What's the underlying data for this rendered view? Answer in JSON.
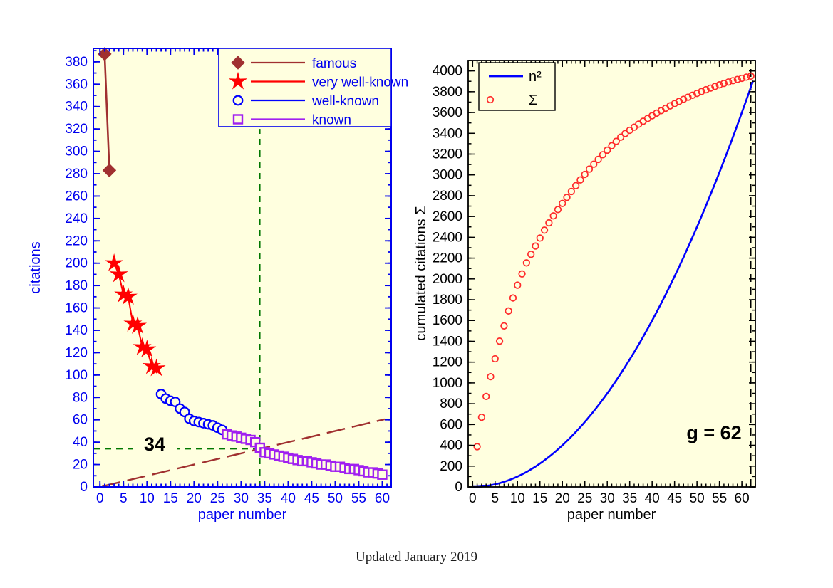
{
  "page": {
    "background": "#ffffff",
    "caption": "Updated January 2019"
  },
  "colors": {
    "plot_background": "#FFFFDF",
    "left_axis": "#0000EE",
    "famous": "#A03030",
    "very_well_known": "#FF0000",
    "well_known": "#0000FF",
    "known": "#A020F0",
    "h_guide_green": "#007700",
    "right_axis": "#000000",
    "n_squared_line": "#0000FF",
    "sigma_points": "#FF2A2A",
    "annotation_text": "#000000"
  },
  "chart_data": [
    {
      "id": "citations-per-paper",
      "type": "scatter",
      "xlabel": "paper number",
      "ylabel": "citations",
      "xlim": [
        -1.4,
        61.9
      ],
      "ylim": [
        0,
        392
      ],
      "x_tick_step": 5,
      "x_minor_step": 1,
      "y_tick_step": 20,
      "y_minor_step": 10,
      "grid": false,
      "legend_position": "top-right",
      "series": [
        {
          "name": "famous",
          "marker": "diamond",
          "color_key": "famous",
          "line": true,
          "points": [
            [
              1,
              387
            ],
            [
              2,
              283
            ]
          ]
        },
        {
          "name": "very well-known",
          "marker": "star",
          "color_key": "very_well_known",
          "line": true,
          "points": [
            [
              3,
              200
            ],
            [
              4,
              190
            ],
            [
              5,
              172
            ],
            [
              6,
              170
            ],
            [
              7,
              146
            ],
            [
              8,
              144
            ],
            [
              9,
              125
            ],
            [
              10,
              123
            ],
            [
              11,
              108
            ],
            [
              12,
              106
            ]
          ]
        },
        {
          "name": "well-known",
          "marker": "circle",
          "color_key": "well_known",
          "line": true,
          "points": [
            [
              13,
              83
            ],
            [
              14,
              79
            ],
            [
              15,
              77
            ],
            [
              16,
              76
            ],
            [
              17,
              70
            ],
            [
              18,
              67
            ],
            [
              19,
              61
            ],
            [
              20,
              59
            ],
            [
              21,
              58
            ],
            [
              22,
              57
            ],
            [
              23,
              56
            ],
            [
              24,
              55
            ],
            [
              25,
              53
            ],
            [
              26,
              51
            ]
          ]
        },
        {
          "name": "known",
          "marker": "square",
          "color_key": "known",
          "line": true,
          "points": [
            [
              27,
              47
            ],
            [
              28,
              46
            ],
            [
              29,
              45
            ],
            [
              30,
              44
            ],
            [
              31,
              43
            ],
            [
              32,
              42
            ],
            [
              33,
              40
            ],
            [
              34,
              35
            ],
            [
              35,
              31
            ],
            [
              36,
              30
            ],
            [
              37,
              29
            ],
            [
              38,
              28
            ],
            [
              39,
              27
            ],
            [
              40,
              26
            ],
            [
              41,
              25
            ],
            [
              42,
              24
            ],
            [
              43,
              23
            ],
            [
              44,
              23
            ],
            [
              45,
              22
            ],
            [
              46,
              21
            ],
            [
              47,
              20
            ],
            [
              48,
              20
            ],
            [
              49,
              19
            ],
            [
              50,
              18
            ],
            [
              51,
              18
            ],
            [
              52,
              17
            ],
            [
              53,
              16
            ],
            [
              54,
              16
            ],
            [
              55,
              15
            ],
            [
              56,
              14
            ],
            [
              57,
              13
            ],
            [
              58,
              13
            ],
            [
              59,
              12
            ],
            [
              60,
              11
            ]
          ]
        }
      ],
      "diagonal_reference": {
        "from": [
          0.5,
          0.5
        ],
        "to": [
          60.5,
          60.5
        ],
        "color_key": "famous",
        "style": "long-dash"
      },
      "h_index": {
        "value": 34,
        "annotation": "34",
        "vline_x": 34,
        "vline_y_top": 320,
        "hline_y": 34,
        "hline_x_end": 34,
        "color_key": "h_guide_green"
      }
    },
    {
      "id": "cumulated-citations",
      "type": "scatter",
      "xlabel": "paper number",
      "ylabel": "cumulated citations Σ",
      "xlim": [
        -1,
        63
      ],
      "ylim": [
        0,
        4100
      ],
      "x_tick_step": 5,
      "x_minor_step": 1,
      "y_tick_step": 200,
      "y_minor_step": 100,
      "grid": false,
      "legend_position": "top-left",
      "series": [
        {
          "name": "n²",
          "curve": "y = x^2",
          "x_range": [
            0,
            62.9
          ],
          "color_key": "n_squared_line",
          "line": true,
          "marker": "none"
        },
        {
          "name": "Σ",
          "marker": "open-circle",
          "color_key": "sigma_points",
          "line": false,
          "points": [
            [
              1,
              387
            ],
            [
              2,
              670
            ],
            [
              3,
              870
            ],
            [
              4,
              1060
            ],
            [
              5,
              1232
            ],
            [
              6,
              1402
            ],
            [
              7,
              1548
            ],
            [
              8,
              1692
            ],
            [
              9,
              1817
            ],
            [
              10,
              1940
            ],
            [
              11,
              2048
            ],
            [
              12,
              2154
            ],
            [
              13,
              2237
            ],
            [
              14,
              2316
            ],
            [
              15,
              2393
            ],
            [
              16,
              2469
            ],
            [
              17,
              2539
            ],
            [
              18,
              2606
            ],
            [
              19,
              2667
            ],
            [
              20,
              2726
            ],
            [
              21,
              2784
            ],
            [
              22,
              2841
            ],
            [
              23,
              2897
            ],
            [
              24,
              2952
            ],
            [
              25,
              3005
            ],
            [
              26,
              3056
            ],
            [
              27,
              3103
            ],
            [
              28,
              3149
            ],
            [
              29,
              3194
            ],
            [
              30,
              3238
            ],
            [
              31,
              3281
            ],
            [
              32,
              3323
            ],
            [
              33,
              3363
            ],
            [
              34,
              3398
            ],
            [
              35,
              3429
            ],
            [
              36,
              3459
            ],
            [
              37,
              3488
            ],
            [
              38,
              3516
            ],
            [
              39,
              3543
            ],
            [
              40,
              3569
            ],
            [
              41,
              3594
            ],
            [
              42,
              3618
            ],
            [
              43,
              3641
            ],
            [
              44,
              3664
            ],
            [
              45,
              3686
            ],
            [
              46,
              3707
            ],
            [
              47,
              3727
            ],
            [
              48,
              3747
            ],
            [
              49,
              3766
            ],
            [
              50,
              3784
            ],
            [
              51,
              3802
            ],
            [
              52,
              3819
            ],
            [
              53,
              3835
            ],
            [
              54,
              3851
            ],
            [
              55,
              3866
            ],
            [
              56,
              3880
            ],
            [
              57,
              3893
            ],
            [
              58,
              3906
            ],
            [
              59,
              3918
            ],
            [
              60,
              3929
            ],
            [
              61,
              3940
            ],
            [
              62,
              3950
            ]
          ]
        }
      ],
      "g_index": {
        "value": 62,
        "annotation": "g = 62",
        "vline_x": 62,
        "color_key": "right_axis"
      }
    }
  ]
}
